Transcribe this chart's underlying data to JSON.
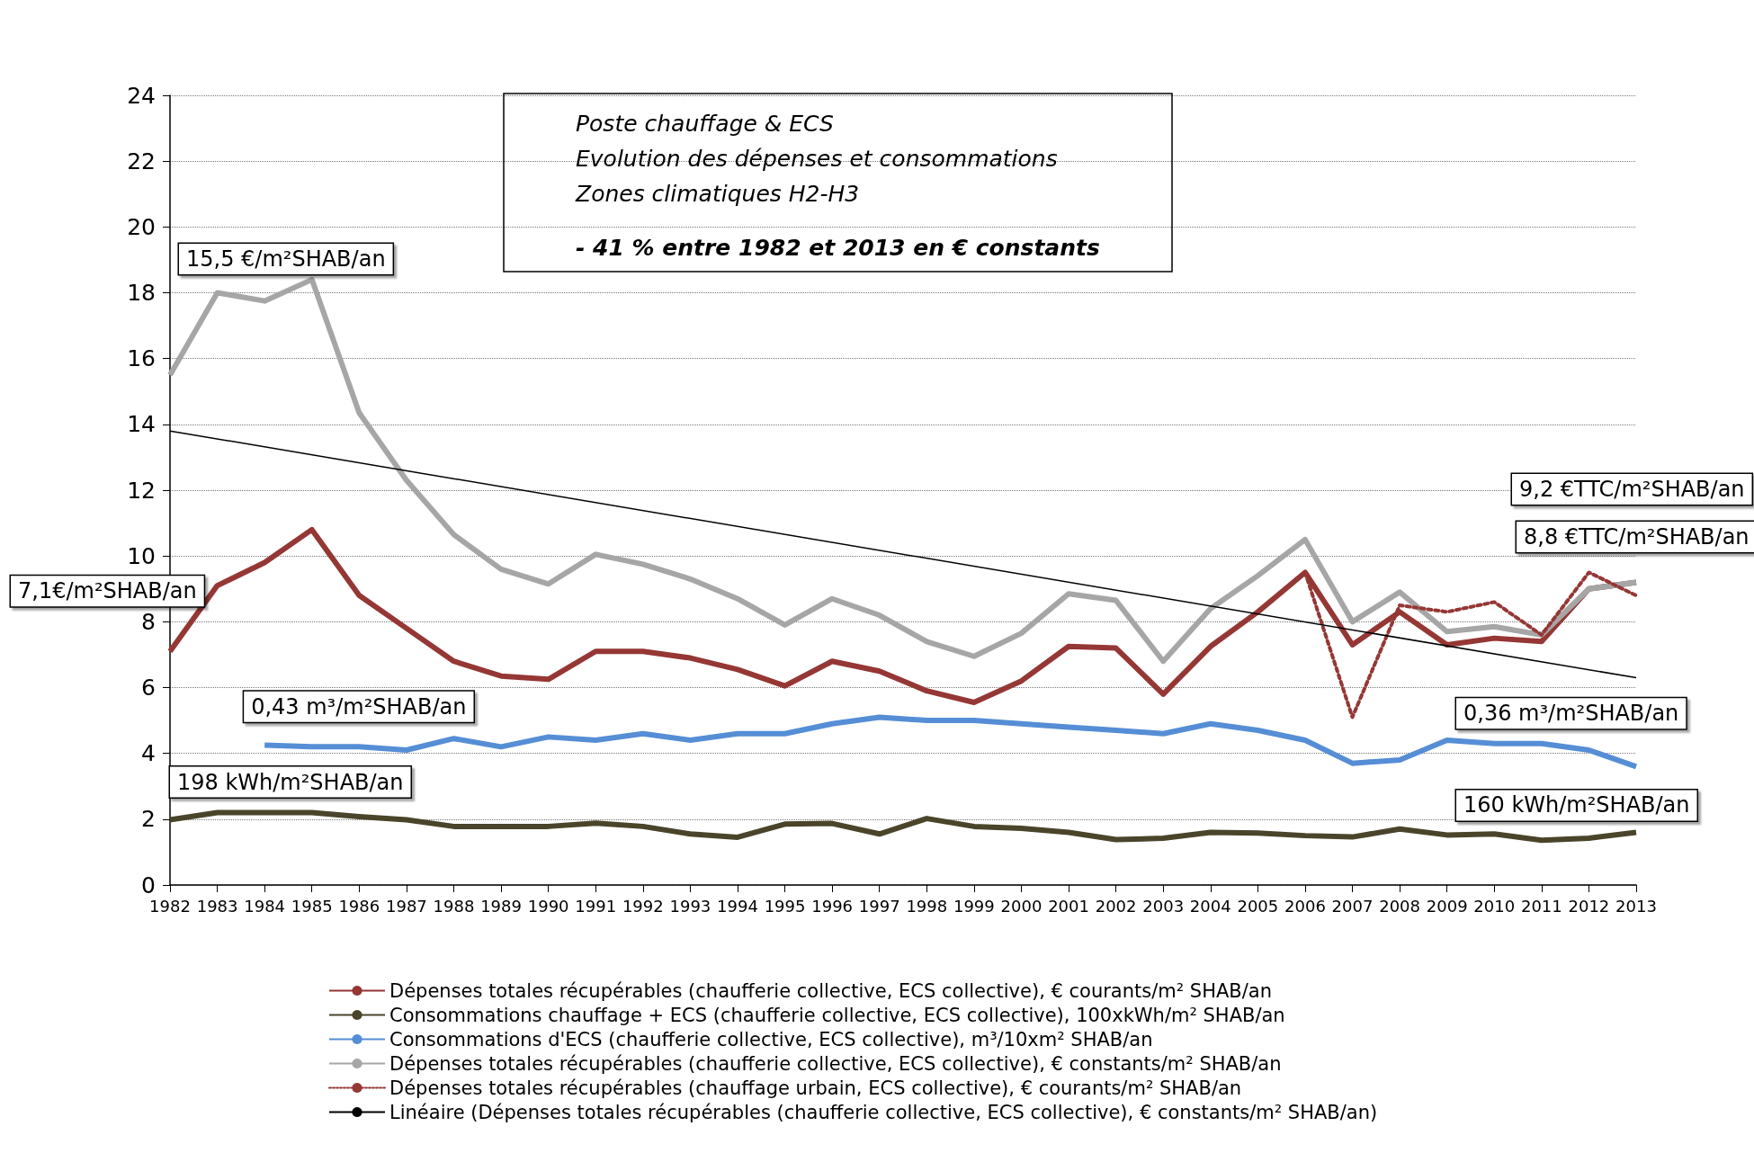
{
  "chart_data": {
    "type": "line",
    "title": "Poste chauffage & ECS\nEvolution des dépenses et consommations\nZones climatiques H2-H3",
    "subtitle": "- 41 % entre 1982 et 2013 en € constants",
    "categories": [
      "1982",
      "1983",
      "1984",
      "1985",
      "1986",
      "1987",
      "1988",
      "1989",
      "1990",
      "1991",
      "1992",
      "1993",
      "1994",
      "1995",
      "1996",
      "1997",
      "1998",
      "1999",
      "2000",
      "2001",
      "2002",
      "2003",
      "2004",
      "2005",
      "2006",
      "2007",
      "2008",
      "2009",
      "2010",
      "2011",
      "2012",
      "2013"
    ],
    "series": [
      {
        "name": "Dépenses totales récupérables (chaufferie collective, ECS collective), € courants/m² SHAB/an",
        "color": "#953735",
        "line_style": "solid",
        "values": [
          7.1,
          9.1,
          9.8,
          10.8,
          8.8,
          7.8,
          6.8,
          6.35,
          6.25,
          7.1,
          7.1,
          6.9,
          6.55,
          6.05,
          6.8,
          6.5,
          5.9,
          5.55,
          6.2,
          7.25,
          7.2,
          5.8,
          7.25,
          8.3,
          9.5,
          7.3,
          8.3,
          7.3,
          7.5,
          7.4,
          9.0,
          9.2
        ]
      },
      {
        "name": "Consommations chauffage + ECS (chaufferie collective, ECS collective), 100xkWh/m² SHAB/an",
        "color": "#4a452a",
        "line_style": "solid",
        "values": [
          1.98,
          2.2,
          2.2,
          2.2,
          2.08,
          1.98,
          1.78,
          1.78,
          1.78,
          1.88,
          1.78,
          1.55,
          1.45,
          1.85,
          1.87,
          1.55,
          2.02,
          1.78,
          1.72,
          1.6,
          1.38,
          1.42,
          1.6,
          1.58,
          1.5,
          1.46,
          1.7,
          1.52,
          1.55,
          1.36,
          1.42,
          1.6
        ]
      },
      {
        "name": "Consommations d'ECS (chaufferie collective, ECS collective), m³/10xm² SHAB/an",
        "color": "#558ed5",
        "line_style": "solid",
        "values": [
          null,
          null,
          4.25,
          4.2,
          4.2,
          4.1,
          4.45,
          4.2,
          4.5,
          4.4,
          4.6,
          4.4,
          4.6,
          4.6,
          4.9,
          5.1,
          5.0,
          5.0,
          4.9,
          4.8,
          4.7,
          4.6,
          4.9,
          4.7,
          4.4,
          3.7,
          3.8,
          4.4,
          4.3,
          4.3,
          4.1,
          3.6
        ]
      },
      {
        "name": "Dépenses totales récupérables (chaufferie collective, ECS collective), € constants/m² SHAB/an",
        "color": "#a6a6a6",
        "line_style": "solid",
        "values": [
          15.5,
          18.0,
          17.75,
          18.4,
          14.35,
          12.3,
          10.65,
          9.6,
          9.15,
          10.05,
          9.75,
          9.3,
          8.7,
          7.9,
          8.7,
          8.2,
          7.4,
          6.95,
          7.65,
          8.85,
          8.65,
          6.8,
          8.4,
          9.4,
          10.5,
          8.0,
          8.9,
          7.7,
          7.85,
          7.6,
          9.0,
          9.2
        ]
      },
      {
        "name": "Dépenses totales récupérables (chauffage urbain, ECS collective), € courants/m² SHAB/an",
        "color": "#953735",
        "line_style": "dotted",
        "values": [
          null,
          null,
          null,
          null,
          null,
          null,
          null,
          null,
          null,
          null,
          null,
          null,
          null,
          null,
          null,
          null,
          null,
          null,
          null,
          null,
          null,
          null,
          null,
          null,
          9.5,
          5.1,
          8.5,
          8.3,
          8.6,
          7.6,
          9.5,
          8.8
        ]
      },
      {
        "name": "Linéaire (Dépenses totales récupérables (chaufferie collective, ECS collective), € constants/m² SHAB/an)",
        "color": "#000000",
        "line_style": "solid",
        "values": [
          13.8,
          null,
          null,
          null,
          null,
          null,
          null,
          null,
          null,
          null,
          null,
          null,
          null,
          null,
          null,
          null,
          null,
          null,
          null,
          null,
          null,
          null,
          null,
          null,
          null,
          null,
          null,
          null,
          null,
          null,
          null,
          6.3
        ]
      }
    ],
    "ylim": [
      0,
      24
    ],
    "yticks": [
      0,
      2,
      4,
      6,
      8,
      10,
      12,
      14,
      16,
      18,
      20,
      22,
      24
    ],
    "grid": "y",
    "legend": "bottom",
    "marker": "none",
    "annotations": [
      "15,5 €/m²SHAB/an",
      {
        "text": "7,1€/m²SHAB/an",
        "x": "1982",
        "y": 7.1
      },
      {
        "text": "0,43 m³/m²SHAB/an",
        "x": "1984",
        "y": 4.3
      },
      {
        "text": "198 kWh/m²SHAB/an",
        "x": "1982",
        "y": 1.98
      },
      "9,2 €TTC/m²SHAB/an",
      {
        "text": "8,8 €TTC/m²SHAB/an",
        "x": "2013",
        "y": 8.8
      },
      {
        "text": "0,36 m³/m²SHAB/an",
        "x": "2013",
        "y": 3.6
      },
      {
        "text": "160 kWh/m²SHAB/an",
        "x": "2013",
        "y": 1.6
      }
    ]
  }
}
